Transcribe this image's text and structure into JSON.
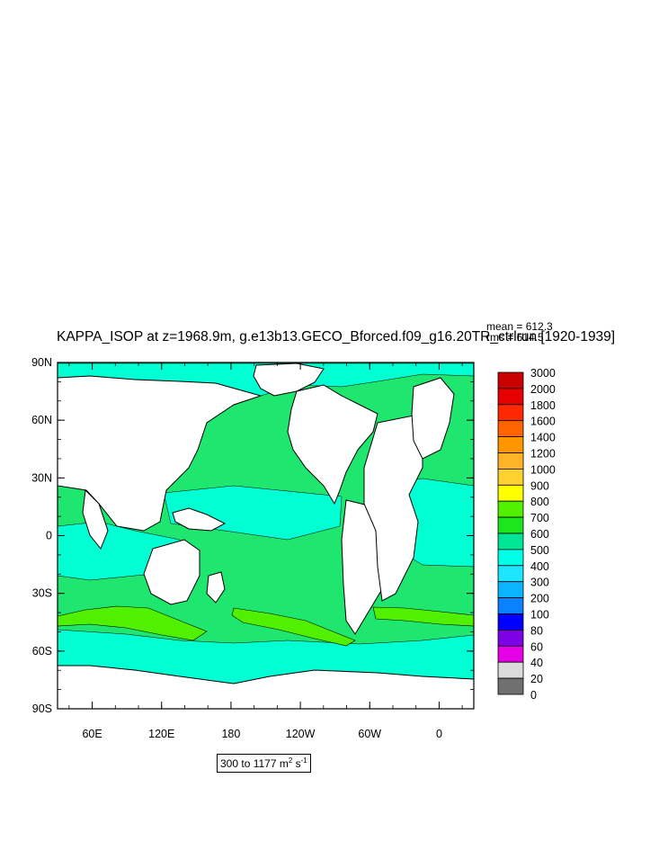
{
  "title": "KAPPA_ISOP at z=1968.9m, g.e13b13.GECO_Bforced.f09_g16.20TR_ctrlrun [1920-1939]",
  "stats": {
    "mean": "mean = 612.3",
    "rms": "rms = 614.5"
  },
  "range": {
    "prefix": "300 to 1177 m",
    "exp1": "2",
    "mid": " s",
    "exp2": "-1"
  },
  "axes": {
    "y_ticks": [
      "90N",
      "60N",
      "30N",
      "0",
      "30S",
      "60S",
      "90S"
    ],
    "x_ticks": [
      "60E",
      "120E",
      "180",
      "120W",
      "60W",
      "0"
    ]
  },
  "colorbar": {
    "labels": [
      "3000",
      "2000",
      "1800",
      "1600",
      "1400",
      "1200",
      "1000",
      "900",
      "800",
      "700",
      "600",
      "500",
      "400",
      "300",
      "200",
      "100",
      "80",
      "60",
      "40",
      "20",
      "0"
    ],
    "colors": [
      "#c80000",
      "#e60000",
      "#ff2800",
      "#ff6400",
      "#ff9600",
      "#ffb428",
      "#ffd232",
      "#ffff00",
      "#50f000",
      "#1ee61e",
      "#00e696",
      "#00ffe6",
      "#1ee6ff",
      "#0ab4ff",
      "#0a82ff",
      "#0000ff",
      "#7d00e6",
      "#e600e6",
      "#dcdcdc",
      "#707070"
    ]
  },
  "map_colors": {
    "land": "#ffffff",
    "ocean_500_600": "#00ffd2",
    "ocean_600_700": "#1ee66e",
    "band_700_800": "#50f000",
    "coast": "#000000"
  }
}
